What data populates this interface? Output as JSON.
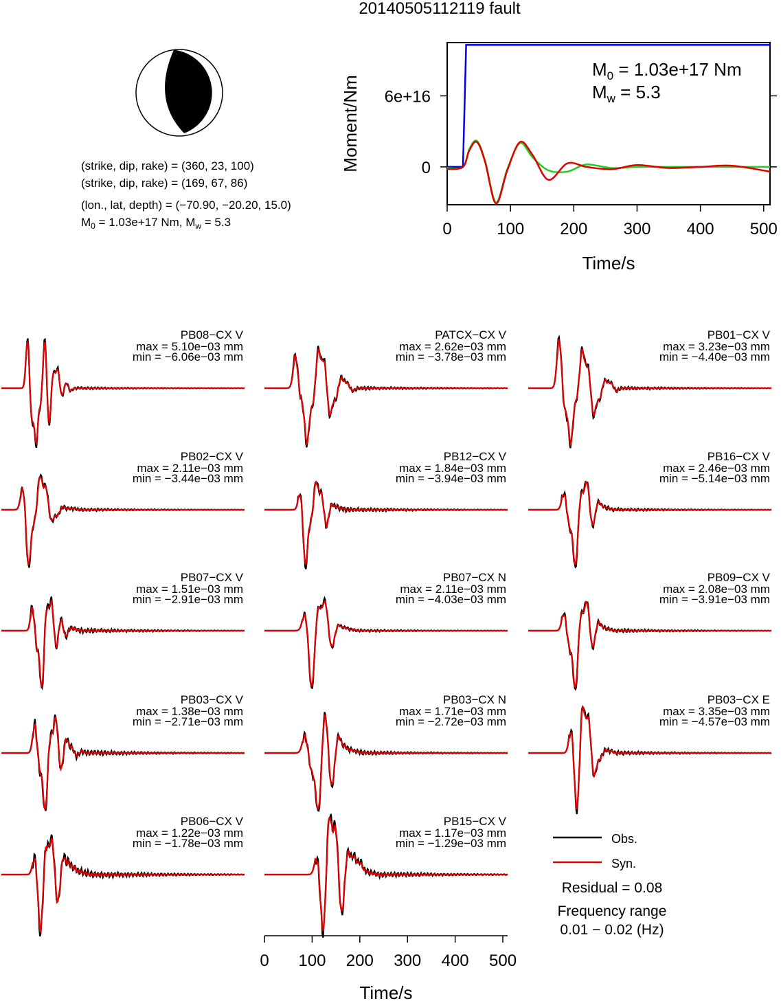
{
  "title": "20140505112119 fault",
  "focal_mechanism": {
    "line1": "(strike, dip, rake) = (360, 23, 100)",
    "line2": "(strike, dip, rake) = (169, 67, 86)",
    "line3": "(lon., lat, depth) = (−70.90, −20.20, 15.0)",
    "line4_prefix": "M",
    "line4_sub": "0",
    "line4_rest": " = 1.03e+17 Nm, M",
    "line4_sub2": "w",
    "line4_end": " = 5.3"
  },
  "colors": {
    "observed": "#000000",
    "synthetic": "#e00000",
    "moment_blue": "#0000e0",
    "moment_green": "#22cc22"
  },
  "chart_data": [
    {
      "type": "line",
      "name": "moment",
      "xlabel": "Time/s",
      "ylabel": "Moment/Nm",
      "xlim": [
        0,
        510
      ],
      "ylim": [
        -3.2e+16,
        1.05e+17
      ],
      "xticks": [
        "0",
        "100",
        "200",
        "300",
        "400",
        "500"
      ],
      "xtick_values": [
        0,
        100,
        200,
        300,
        400,
        500
      ],
      "yticks": [
        "0",
        "6e+16"
      ],
      "ytick_values": [
        0,
        6e+16
      ],
      "annotation": {
        "m0_prefix": "M",
        "m0_sub": "0",
        "m0_rest": " = 1.03e+17 Nm",
        "mw_prefix": "M",
        "mw_sub": "w",
        "mw_rest": " = 5.3"
      },
      "series": [
        {
          "color": "blue",
          "x": [
            0,
            25,
            30,
            510
          ],
          "y": [
            0,
            0,
            1.03e+17,
            1.03e+17
          ]
        },
        {
          "color": "green",
          "x": [
            0,
            25,
            35,
            47,
            60,
            77,
            95,
            115,
            135,
            160,
            190,
            220,
            260,
            300,
            350,
            400,
            450,
            510
          ],
          "y": [
            -1000000000000000.0,
            0,
            1.5e+16,
            2.2e+16,
            5000000000000000.0,
            -3e+16,
            -2000000000000000.0,
            2e+16,
            8000000000000000.0,
            -3000000000000000.0,
            -4000000000000000.0,
            2000000000000000.0,
            -1000000000000000.0,
            0,
            0,
            0,
            0,
            0
          ]
        },
        {
          "color": "red",
          "x": [
            0,
            25,
            35,
            47,
            60,
            77,
            95,
            115,
            135,
            160,
            190,
            220,
            260,
            300,
            350,
            400,
            450,
            510
          ],
          "y": [
            -2000000000000000.0,
            0,
            1.4e+16,
            2.1e+16,
            4000000000000000.0,
            -3.1e+16,
            -3000000000000000.0,
            2.1e+16,
            1e+16,
            -1.1e+16,
            3000000000000000.0,
            0,
            -2000000000000000.0,
            1500000000000000.0,
            -1000000000000000.0,
            0,
            1000000000000000.0,
            -4000000000000000.0
          ]
        }
      ]
    },
    {
      "type": "line",
      "name": "waveforms",
      "xlabel": "Time/s",
      "xlim": [
        0,
        510
      ],
      "xticks": [
        "0",
        "100",
        "200",
        "300",
        "400",
        "500"
      ],
      "xtick_values": [
        0,
        100,
        200,
        300,
        400,
        500
      ],
      "legend": {
        "obs": "Obs.",
        "syn": "Syn."
      },
      "panels": [
        {
          "label": "PB08−CX V",
          "max": "max = 5.10e−03 mm",
          "min": "min = −6.06e−03 mm",
          "t0": 55,
          "amps": [
            0.9,
            -0.6,
            -1.0,
            -0.3,
            0.9,
            -0.7,
            0.3,
            0.35,
            -0.15,
            0.1,
            -0.05
          ],
          "dt": 9,
          "noise": 0.03
        },
        {
          "label": "PATCX−CX V",
          "max": "max = 2.62e−03 mm",
          "min": "min = −3.78e−03 mm",
          "t0": 65,
          "amps": [
            0.6,
            -0.2,
            -1.0,
            -0.3,
            0.7,
            0.5,
            -0.5,
            -0.2,
            0.2,
            0.1,
            -0.05
          ],
          "dt": 12,
          "noise": 0.05
        },
        {
          "label": "PB01−CX V",
          "max": "max = 3.23e−03 mm",
          "min": "min = −4.40e−03 mm",
          "t0": 65,
          "amps": [
            0.9,
            -0.4,
            -1.0,
            -0.2,
            0.7,
            0.4,
            -0.5,
            -0.2,
            0.15,
            0.1,
            -0.05
          ],
          "dt": 12,
          "noise": 0.05
        },
        {
          "label": "PB02−CX V",
          "max": "max = 2.11e−03 mm",
          "min": "min = −3.44e−03 mm",
          "t0": 45,
          "amps": [
            0.4,
            -1.0,
            -0.2,
            0.6,
            0.4,
            -0.2,
            -0.1,
            0.05,
            0.02,
            0.02,
            0
          ],
          "dt": 12,
          "noise": 0.04
        },
        {
          "label": "PB12−CX V",
          "max": "max = 1.84e−03 mm",
          "min": "min = −3.94e−03 mm",
          "t0": 75,
          "amps": [
            0.3,
            -1.0,
            -0.2,
            0.5,
            0.3,
            -0.3,
            0.1,
            0.05,
            0.02,
            0,
            0
          ],
          "dt": 11,
          "noise": 0.05
        },
        {
          "label": "PB16−CX V",
          "max": "max = 2.46e−03 mm",
          "min": "min = −5.14e−03 mm",
          "t0": 75,
          "amps": [
            0.3,
            -0.3,
            -1.0,
            0.3,
            0.5,
            -0.3,
            0.15,
            0.05,
            0.02,
            0,
            0
          ],
          "dt": 12,
          "noise": 0.04
        },
        {
          "label": "PB07−CX V",
          "max": "max = 1.51e−03 mm",
          "min": "min = −2.91e−03 mm",
          "t0": 65,
          "amps": [
            0.4,
            -0.3,
            -1.0,
            0.4,
            0.5,
            -0.3,
            0.2,
            -0.1,
            0.05,
            0.03,
            0
          ],
          "dt": 10,
          "noise": 0.05
        },
        {
          "label": "PB07−CX N",
          "max": "max = 2.11e−03 mm",
          "min": "min = −4.03e−03 mm",
          "t0": 85,
          "amps": [
            0.3,
            -1.0,
            0.4,
            0.5,
            -0.3,
            0.1,
            0.05,
            0.02,
            0,
            0,
            0
          ],
          "dt": 14,
          "noise": 0.03
        },
        {
          "label": "PB09−CX V",
          "max": "max = 2.08e−03 mm",
          "min": "min = −3.91e−03 mm",
          "t0": 75,
          "amps": [
            0.3,
            -0.3,
            -1.0,
            0.3,
            0.5,
            -0.3,
            0.15,
            0.05,
            0.02,
            0,
            0
          ],
          "dt": 12,
          "noise": 0.04
        },
        {
          "label": "PB03−CX V",
          "max": "max = 1.38e−03 mm",
          "min": "min = −2.71e−03 mm",
          "t0": 70,
          "amps": [
            0.5,
            -0.3,
            -1.0,
            0.3,
            0.6,
            -0.3,
            0.25,
            0.1,
            -0.05,
            0.03,
            0
          ],
          "dt": 11,
          "noise": 0.06
        },
        {
          "label": "PB03−CX N",
          "max": "max = 1.71e−03 mm",
          "min": "min = −2.72e−03 mm",
          "t0": 85,
          "amps": [
            0.3,
            -0.3,
            -1.0,
            0.7,
            -0.6,
            0.3,
            0.1,
            0.05,
            0.02,
            0,
            0
          ],
          "dt": 14,
          "noise": 0.05
        },
        {
          "label": "PB03−CX E",
          "max": "max = 3.35e−03 mm",
          "min": "min = −4.57e−03 mm",
          "t0": 90,
          "amps": [
            0.4,
            -1.0,
            0.8,
            0.6,
            -0.4,
            -0.1,
            0.05,
            0.03,
            0,
            0,
            0
          ],
          "dt": 12,
          "noise": 0.04
        },
        {
          "label": "PB06−CX V",
          "max": "max = 1.22e−03 mm",
          "min": "min = −1.78e−03 mm",
          "t0": 70,
          "amps": [
            0.3,
            -1.0,
            0.5,
            0.6,
            -0.5,
            0.3,
            0.2,
            0.1,
            0.05,
            0.02,
            0
          ],
          "dt": 12,
          "noise": 0.08
        },
        {
          "label": "PB15−CX V",
          "max": "max = 1.17e−03 mm",
          "min": "min = −1.29e−03 mm",
          "t0": 110,
          "amps": [
            0.3,
            -1.0,
            1.0,
            0.8,
            -0.7,
            0.4,
            0.3,
            0.2,
            0.05,
            0.02,
            0
          ],
          "dt": 13,
          "noise": 0.07
        }
      ]
    }
  ],
  "summary": {
    "residual": "Residual = 0.08",
    "freq_label": "Frequency range",
    "freq_value": "0.01 − 0.02 (Hz)"
  }
}
